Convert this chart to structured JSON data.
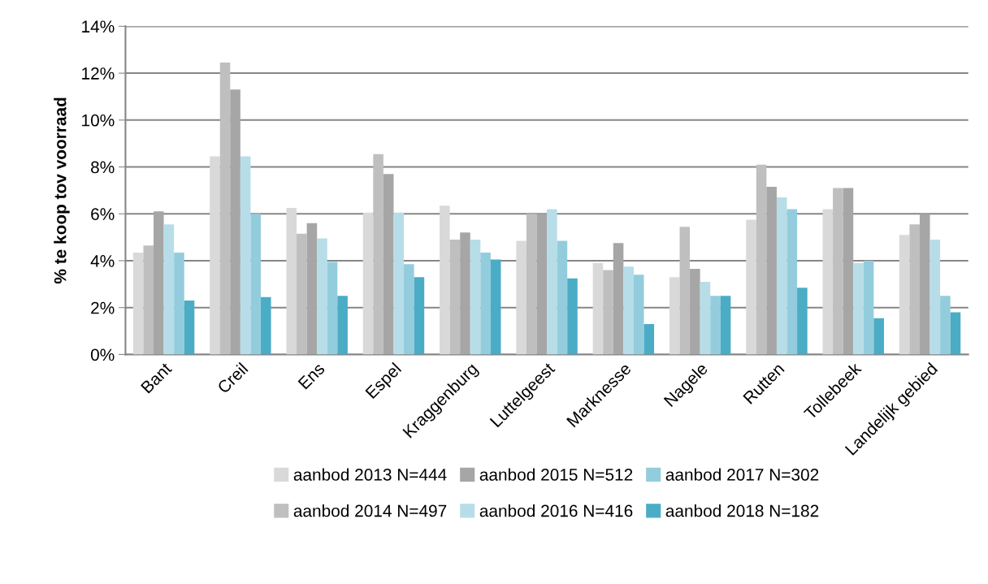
{
  "chart_data": {
    "type": "bar",
    "ylabel": "% te koop tov voorraad",
    "categories": [
      "Bant",
      "Creil",
      "Ens",
      "Espel",
      "Kraggenburg",
      "Luttelgeest",
      "Marknesse",
      "Nagele",
      "Rutten",
      "Tollebeek",
      "Landelijk gebied"
    ],
    "series": [
      {
        "name": "aanbod 2013 N=444",
        "color": "#d9d9d9",
        "values": [
          4.35,
          8.45,
          6.25,
          6.05,
          6.35,
          4.85,
          3.9,
          3.3,
          5.75,
          6.2,
          5.1
        ]
      },
      {
        "name": "aanbod 2014 N=497",
        "color": "#bfbfbf",
        "values": [
          4.65,
          12.45,
          5.15,
          8.55,
          4.9,
          6.0,
          3.6,
          5.45,
          8.1,
          7.1,
          5.55
        ]
      },
      {
        "name": "aanbod 2015 N=512",
        "color": "#a6a6a6",
        "values": [
          6.1,
          11.3,
          5.6,
          7.7,
          5.2,
          6.0,
          4.75,
          3.65,
          7.15,
          7.1,
          6.0
        ]
      },
      {
        "name": "aanbod 2016 N=416",
        "color": "#b7dee8",
        "values": [
          5.55,
          8.45,
          4.95,
          6.05,
          4.9,
          6.2,
          3.75,
          3.1,
          6.7,
          3.9,
          4.9
        ]
      },
      {
        "name": "aanbod 2017 N=302",
        "color": "#93cddd",
        "values": [
          4.35,
          6.0,
          3.95,
          3.85,
          4.35,
          4.85,
          3.4,
          2.5,
          6.2,
          4.0,
          2.5
        ]
      },
      {
        "name": "aanbod 2018 N=182",
        "color": "#4bacc6",
        "values": [
          2.3,
          2.45,
          2.5,
          3.3,
          4.05,
          3.25,
          1.3,
          2.5,
          2.85,
          1.55,
          1.8
        ]
      }
    ],
    "ylim": [
      0,
      14
    ],
    "yticks": [
      {
        "value": 0,
        "label": "0%"
      },
      {
        "value": 2,
        "label": "2%"
      },
      {
        "value": 4,
        "label": "4%"
      },
      {
        "value": 6,
        "label": "6%"
      },
      {
        "value": 8,
        "label": "8%"
      },
      {
        "value": 10,
        "label": "10%"
      },
      {
        "value": 12,
        "label": "12%"
      },
      {
        "value": 14,
        "label": "14%"
      }
    ],
    "grid": "y",
    "legend": "bottom"
  }
}
